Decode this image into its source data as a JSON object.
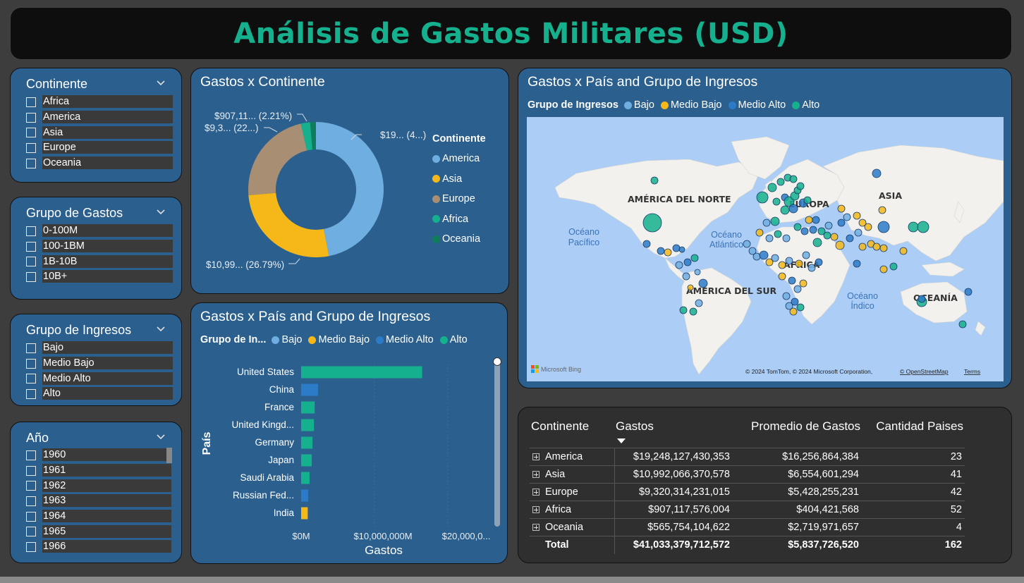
{
  "title": "Análisis de Gastos Militares (USD)",
  "slicers": {
    "continente": {
      "title": "Continente",
      "items": [
        "Africa",
        "America",
        "Asia",
        "Europe",
        "Oceania"
      ]
    },
    "grupo_gastos": {
      "title": "Grupo de Gastos",
      "items": [
        "0-100M",
        "100-1BM",
        "1B-10B",
        "10B+"
      ]
    },
    "grupo_ingresos": {
      "title": "Grupo de Ingresos",
      "items": [
        "Bajo",
        "Medio Bajo",
        "Medio Alto",
        "Alto"
      ]
    },
    "anio": {
      "title": "Año",
      "items": [
        "1960",
        "1961",
        "1962",
        "1963",
        "1964",
        "1965",
        "1966"
      ]
    }
  },
  "donut": {
    "title": "Gastos x Continente",
    "legend_title": "Continente",
    "legend": [
      {
        "name": "America",
        "color": "#6faee0"
      },
      {
        "name": "Asia",
        "color": "#f5b818"
      },
      {
        "name": "Europe",
        "color": "#a88e72"
      },
      {
        "name": "Africa",
        "color": "#15b08d"
      },
      {
        "name": "Oceania",
        "color": "#0f7d5b"
      }
    ],
    "labels": {
      "america": "$19... (4...)",
      "asia": "$10,99... (26.79%)",
      "europe": "$9,3... (22...)",
      "africa": "$907,11... (2.21%)"
    }
  },
  "bar": {
    "title": "Gastos x País and Grupo de Ingresos",
    "legend_title": "Grupo de In...",
    "legend": [
      {
        "name": "Bajo",
        "color": "#6faee0"
      },
      {
        "name": "Medio Bajo",
        "color": "#f5b818"
      },
      {
        "name": "Medio Alto",
        "color": "#2c7bc9"
      },
      {
        "name": "Alto",
        "color": "#15b08d"
      }
    ],
    "ylabel": "País",
    "xlabel": "Gastos",
    "xticks": [
      "$0M",
      "$10,000,000M",
      "$20,000,0..."
    ]
  },
  "chart_data": {
    "type": "bar",
    "orientation": "horizontal",
    "categories": [
      "United States",
      "China",
      "France",
      "United Kingd...",
      "Germany",
      "Japan",
      "Saudi Arabia",
      "Russian Fed...",
      "India"
    ],
    "values": [
      16500000,
      2300000,
      1850000,
      1750000,
      1550000,
      1450000,
      1150000,
      950000,
      900000
    ],
    "groups": [
      "Alto",
      "Medio Alto",
      "Alto",
      "Alto",
      "Alto",
      "Alto",
      "Alto",
      "Medio Alto",
      "Medio Bajo"
    ],
    "xlim": [
      0,
      22500000
    ],
    "unit": "M"
  },
  "map": {
    "title": "Gastos x País and Grupo de Ingresos",
    "legend_title": "Grupo de Ingresos",
    "legend": [
      {
        "name": "Bajo",
        "color": "#6faee0"
      },
      {
        "name": "Medio Bajo",
        "color": "#f5b818"
      },
      {
        "name": "Medio Alto",
        "color": "#2c7bc9"
      },
      {
        "name": "Alto",
        "color": "#15b08d"
      }
    ],
    "labels": {
      "na": "AMÉRICA DEL NORTE",
      "eu": "EUROPA",
      "asia": "ASIA",
      "africa": "ÁFRICA",
      "sa": "AMÉRICA DEL SUR",
      "oce": "OCEANÍA",
      "pac1": "Océano",
      "pac2": "Pacífico",
      "atl1": "Océano",
      "atl2": "Atlántico",
      "ind1": "Océano",
      "ind2": "Índico"
    },
    "bing": "Microsoft Bing",
    "copyright": "© 2024 TomTom, © 2024 Microsoft Corporation,",
    "osm": "© OpenStreetMap",
    "terms": "Terms"
  },
  "matrix": {
    "headers": [
      "Continente",
      "Gastos",
      "Promedio de Gastos",
      "Cantidad Paises"
    ],
    "rows": [
      {
        "continente": "America",
        "gastos": "$19,248,127,430,353",
        "promedio": "$16,256,864,384",
        "cantidad": "23"
      },
      {
        "continente": "Asia",
        "gastos": "$10,992,066,370,578",
        "promedio": "$6,554,601,294",
        "cantidad": "41"
      },
      {
        "continente": "Europe",
        "gastos": "$9,320,314,231,015",
        "promedio": "$5,428,255,231",
        "cantidad": "42"
      },
      {
        "continente": "Africa",
        "gastos": "$907,117,576,004",
        "promedio": "$404,421,568",
        "cantidad": "52"
      },
      {
        "continente": "Oceania",
        "gastos": "$565,754,104,622",
        "promedio": "$2,719,971,657",
        "cantidad": "4"
      }
    ],
    "total": {
      "label": "Total",
      "gastos": "$41,033,379,712,572",
      "promedio": "$5,837,726,520",
      "cantidad": "162"
    }
  }
}
